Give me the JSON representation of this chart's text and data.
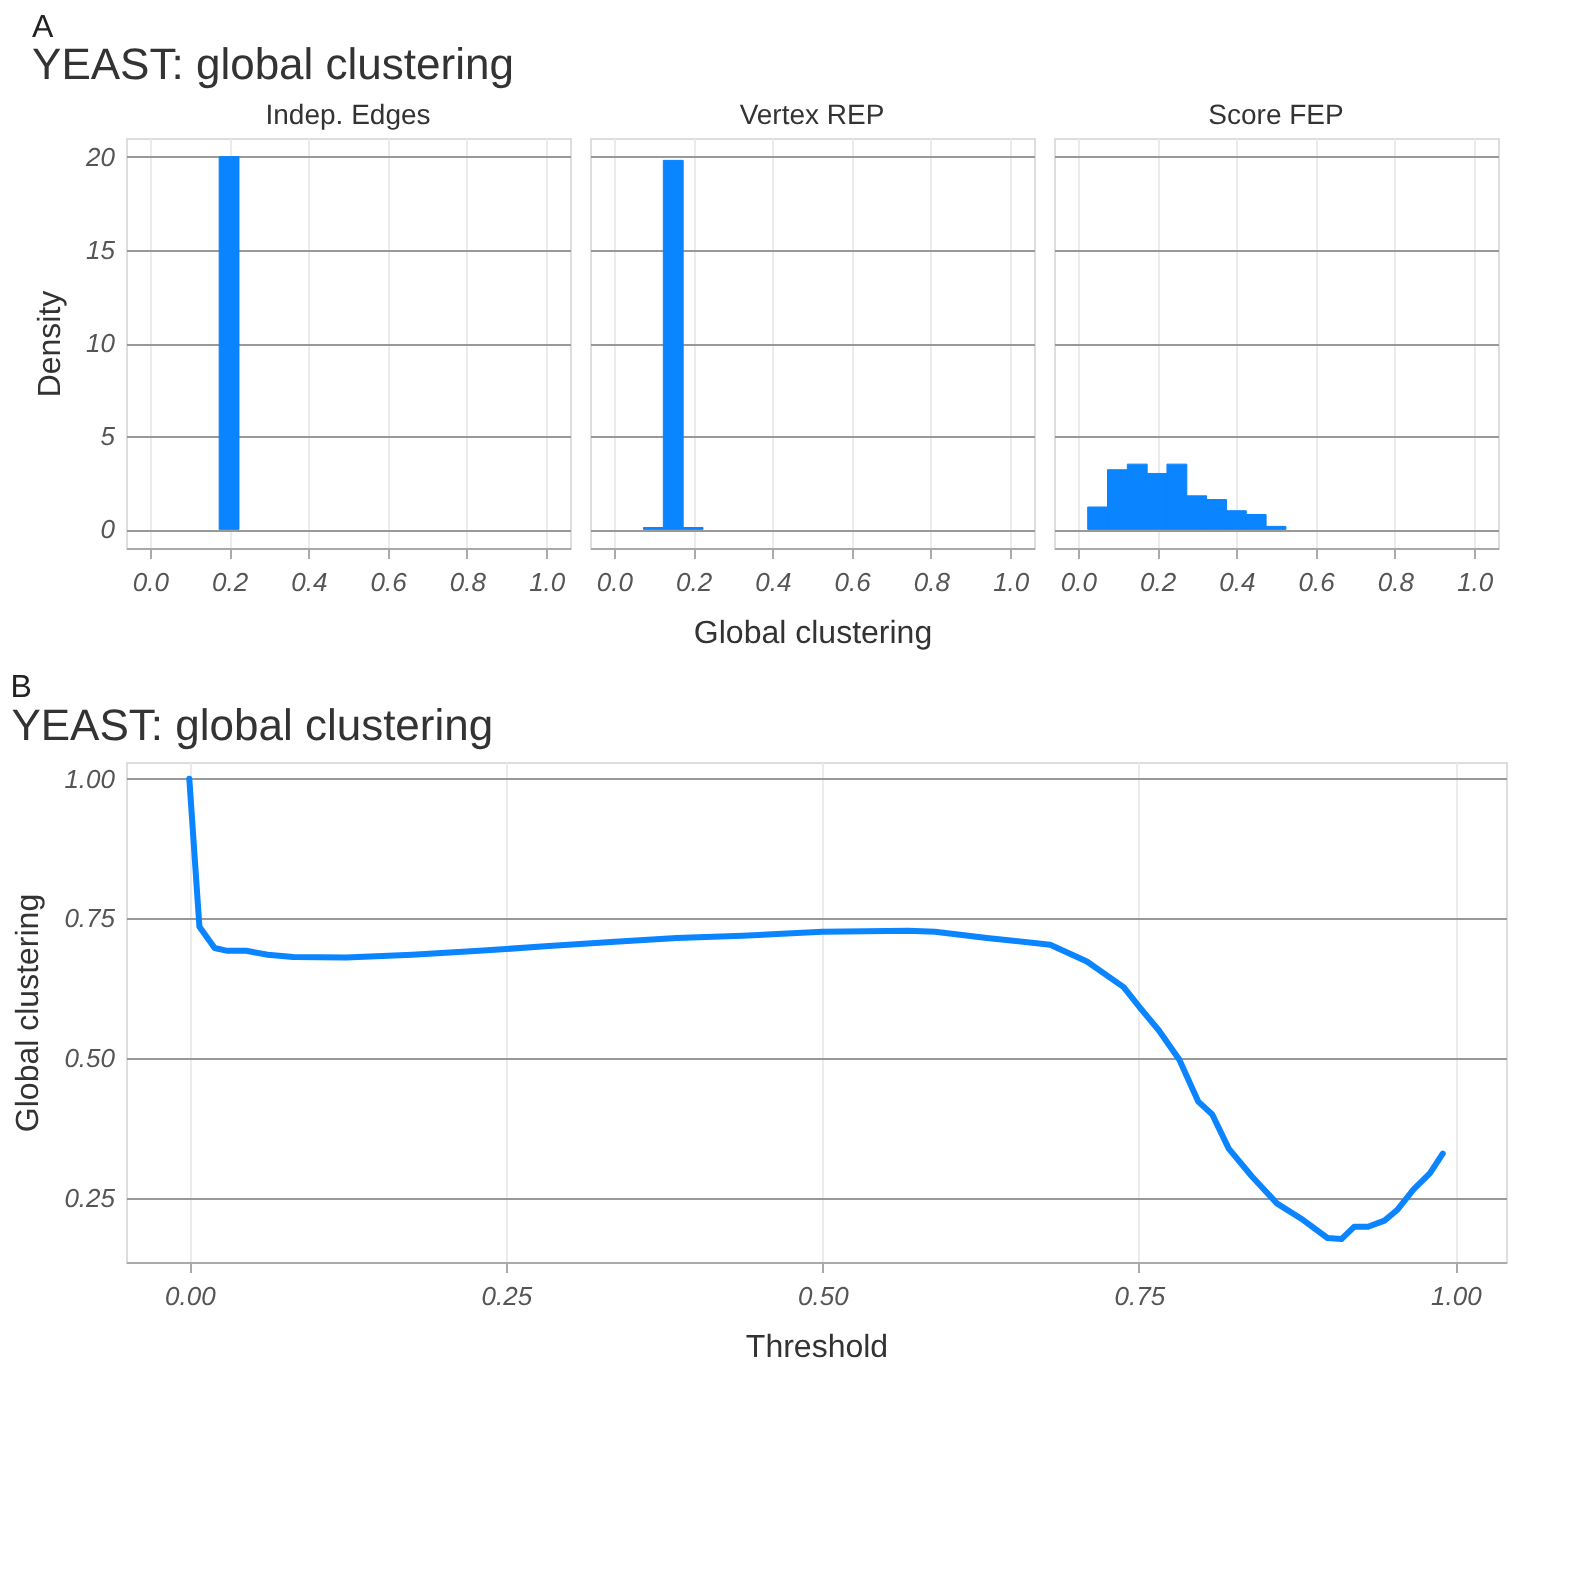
{
  "chart_data": [
    {
      "type": "histogram",
      "title": "Indep. Edges",
      "annotations": [
        "A",
        "YEAST: global clustering"
      ],
      "ylabel": "Density",
      "bins": [
        0.175,
        0.225
      ],
      "values": [
        20
      ],
      "color": "#0a84ff",
      "xlim": [
        -0.06,
        1.06
      ],
      "ylim": [
        -1,
        21
      ],
      "xticks": [
        {
          "value": 0,
          "label": "0.0"
        },
        {
          "value": 0.2,
          "label": "0.2"
        },
        {
          "value": 0.4,
          "label": "0.4"
        },
        {
          "value": 0.6,
          "label": "0.6"
        },
        {
          "value": 0.8,
          "label": "0.8"
        },
        {
          "value": 1,
          "label": "1.0"
        }
      ],
      "yticks": [
        0,
        5,
        10,
        15,
        20
      ],
      "grid": true
    },
    {
      "type": "histogram",
      "title": "Vertex REP",
      "xlabel": "Global clustering",
      "bins": [
        0.075,
        0.125,
        0.175,
        0.225
      ],
      "values": [
        0.1,
        19.8,
        0.1
      ],
      "color": "#0a84ff",
      "xlim": [
        -0.06,
        1.06
      ],
      "ylim": [
        -1,
        21
      ],
      "xticks": [
        {
          "value": 0,
          "label": "0.0"
        },
        {
          "value": 0.2,
          "label": "0.2"
        },
        {
          "value": 0.4,
          "label": "0.4"
        },
        {
          "value": 0.6,
          "label": "0.6"
        },
        {
          "value": 0.8,
          "label": "0.8"
        },
        {
          "value": 1,
          "label": "1.0"
        }
      ],
      "yticks": [
        0,
        5,
        10,
        15,
        20
      ],
      "tick_labels": "x",
      "grid": true
    },
    {
      "type": "histogram",
      "title": "Score FEP",
      "bins": [
        0.025,
        0.075,
        0.125,
        0.175,
        0.225,
        0.275,
        0.325,
        0.375,
        0.425,
        0.475,
        0.525
      ],
      "values": [
        1.2,
        3.2,
        3.5,
        3.0,
        3.5,
        1.8,
        1.6,
        1.0,
        0.8,
        0.16
      ],
      "color": "#0a84ff",
      "xlim": [
        -0.06,
        1.06
      ],
      "ylim": [
        -1,
        21
      ],
      "xticks": [
        {
          "value": 0,
          "label": "0.0"
        },
        {
          "value": 0.2,
          "label": "0.2"
        },
        {
          "value": 0.4,
          "label": "0.4"
        },
        {
          "value": 0.6,
          "label": "0.6"
        },
        {
          "value": 0.8,
          "label": "0.8"
        },
        {
          "value": 1,
          "label": "1.0"
        }
      ],
      "yticks": [
        0,
        5,
        10,
        15,
        20
      ],
      "tick_labels": "x",
      "grid": true
    },
    {
      "type": "line",
      "title": "YEAST: global clustering",
      "annotations": [
        "B"
      ],
      "xlabel": "Threshold",
      "ylabel": "Global clustering",
      "xlim": [
        -0.05,
        1.04
      ],
      "ylim": [
        0.135,
        1.03
      ],
      "xticks": [
        {
          "value": 0,
          "label": "0.00"
        },
        {
          "value": 0.25,
          "label": "0.25"
        },
        {
          "value": 0.5,
          "label": "0.50"
        },
        {
          "value": 0.75,
          "label": "0.75"
        },
        {
          "value": 1,
          "label": "1.00"
        }
      ],
      "yticks": [
        {
          "value": 0.25,
          "label": "0.25"
        },
        {
          "value": 0.5,
          "label": "0.50"
        },
        {
          "value": 0.75,
          "label": "0.75"
        },
        {
          "value": 1,
          "label": "1.00"
        }
      ],
      "grid": true,
      "x": [
        0,
        0.008,
        0.02,
        0.03,
        0.045,
        0.062,
        0.082,
        0.124,
        0.176,
        0.229,
        0.281,
        0.333,
        0.385,
        0.437,
        0.5,
        0.568,
        0.589,
        0.63,
        0.68,
        0.709,
        0.738,
        0.751,
        0.766,
        0.782,
        0.797,
        0.808,
        0.821,
        0.839,
        0.859,
        0.878,
        0.899,
        0.91,
        0.92,
        0.931,
        0.944,
        0.954,
        0.967,
        0.98,
        0.99
      ],
      "series": [
        {
          "color": "#0a84ff",
          "values": [
            1.0,
            0.735,
            0.697,
            0.692,
            0.692,
            0.685,
            0.681,
            0.68,
            0.685,
            0.692,
            0.7,
            0.708,
            0.715,
            0.719,
            0.726,
            0.728,
            0.726,
            0.715,
            0.703,
            0.673,
            0.627,
            0.59,
            0.549,
            0.497,
            0.422,
            0.399,
            0.338,
            0.289,
            0.24,
            0.213,
            0.178,
            0.176,
            0.198,
            0.198,
            0.209,
            0.228,
            0.265,
            0.294,
            0.329
          ]
        }
      ]
    }
  ]
}
